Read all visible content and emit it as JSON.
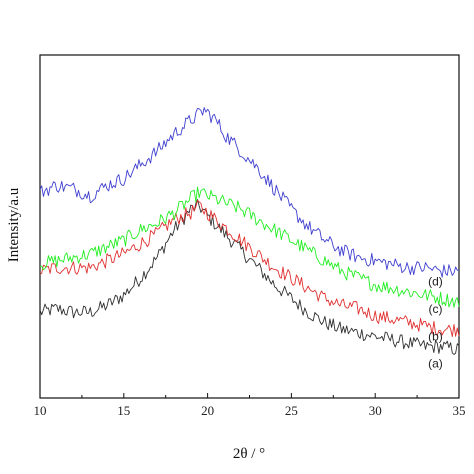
{
  "chart_data": {
    "type": "line",
    "xlabel": "2θ / °",
    "ylabel": "Intensity/a.u",
    "xlim": [
      10,
      35
    ],
    "ylim": [
      0,
      100
    ],
    "x_ticks": [
      10,
      15,
      20,
      25,
      30,
      35
    ],
    "y_ticks_shown": false,
    "grid": false,
    "legend": "none",
    "series": [
      {
        "name": "(a)",
        "color": "#303030",
        "points": [
          [
            10,
            25
          ],
          [
            11,
            26
          ],
          [
            12,
            25
          ],
          [
            13,
            25
          ],
          [
            14,
            27
          ],
          [
            15,
            30
          ],
          [
            16,
            35
          ],
          [
            17,
            41
          ],
          [
            18,
            49
          ],
          [
            19,
            55
          ],
          [
            19.5,
            56
          ],
          [
            20,
            53
          ],
          [
            21,
            48
          ],
          [
            22,
            43
          ],
          [
            23,
            38
          ],
          [
            24,
            33
          ],
          [
            25,
            29
          ],
          [
            26,
            25
          ],
          [
            27,
            22
          ],
          [
            28,
            20
          ],
          [
            29,
            19
          ],
          [
            30,
            18
          ],
          [
            31,
            17
          ],
          [
            32,
            16
          ],
          [
            33,
            15
          ],
          [
            34,
            15
          ],
          [
            35,
            14
          ]
        ]
      },
      {
        "name": "(b)",
        "color": "#e03030",
        "points": [
          [
            10,
            37
          ],
          [
            11,
            38
          ],
          [
            12,
            38
          ],
          [
            13,
            38
          ],
          [
            14,
            40
          ],
          [
            15,
            42
          ],
          [
            16,
            45
          ],
          [
            17,
            48
          ],
          [
            18,
            52
          ],
          [
            19,
            54
          ],
          [
            19.5,
            56
          ],
          [
            20,
            54
          ],
          [
            21,
            50
          ],
          [
            22,
            46
          ],
          [
            23,
            42
          ],
          [
            24,
            38
          ],
          [
            25,
            35
          ],
          [
            26,
            32
          ],
          [
            27,
            29
          ],
          [
            28,
            27
          ],
          [
            29,
            26
          ],
          [
            30,
            24
          ],
          [
            31,
            23
          ],
          [
            32,
            22
          ],
          [
            33,
            21
          ],
          [
            34,
            20
          ],
          [
            35,
            20
          ]
        ]
      },
      {
        "name": "(c)",
        "color": "#22ee22",
        "points": [
          [
            10,
            39
          ],
          [
            11,
            40
          ],
          [
            12,
            41
          ],
          [
            13,
            42
          ],
          [
            14,
            44
          ],
          [
            15,
            46
          ],
          [
            16,
            49
          ],
          [
            17,
            51
          ],
          [
            18,
            54
          ],
          [
            19,
            58
          ],
          [
            19.5,
            60
          ],
          [
            20,
            59
          ],
          [
            21,
            57
          ],
          [
            22,
            55
          ],
          [
            23,
            52
          ],
          [
            24,
            49
          ],
          [
            25,
            46
          ],
          [
            26,
            43
          ],
          [
            27,
            40
          ],
          [
            28,
            37
          ],
          [
            29,
            35
          ],
          [
            30,
            33
          ],
          [
            31,
            32
          ],
          [
            32,
            31
          ],
          [
            33,
            30
          ],
          [
            34,
            29
          ],
          [
            35,
            28
          ]
        ]
      },
      {
        "name": "(d)",
        "color": "#4040d0",
        "points": [
          [
            10,
            60
          ],
          [
            11,
            62
          ],
          [
            12,
            61
          ],
          [
            13,
            59
          ],
          [
            14,
            62
          ],
          [
            15,
            64
          ],
          [
            16,
            68
          ],
          [
            17,
            72
          ],
          [
            18,
            77
          ],
          [
            19,
            81
          ],
          [
            19.8,
            84
          ],
          [
            20.5,
            81
          ],
          [
            21,
            77
          ],
          [
            22,
            72
          ],
          [
            23,
            67
          ],
          [
            24,
            61
          ],
          [
            25,
            55
          ],
          [
            26,
            50
          ],
          [
            27,
            46
          ],
          [
            28,
            43
          ],
          [
            29,
            41
          ],
          [
            30,
            40
          ],
          [
            31,
            39
          ],
          [
            32,
            38
          ],
          [
            33,
            38
          ],
          [
            34,
            37
          ],
          [
            35,
            37
          ]
        ]
      }
    ],
    "annotations": [
      {
        "text": "(d)",
        "x": 33,
        "y": 34
      },
      {
        "text": "(c)",
        "x": 33,
        "y": 26
      },
      {
        "text": "(b)",
        "x": 33,
        "y": 18
      },
      {
        "text": "(a)",
        "x": 33,
        "y": 10
      }
    ]
  }
}
